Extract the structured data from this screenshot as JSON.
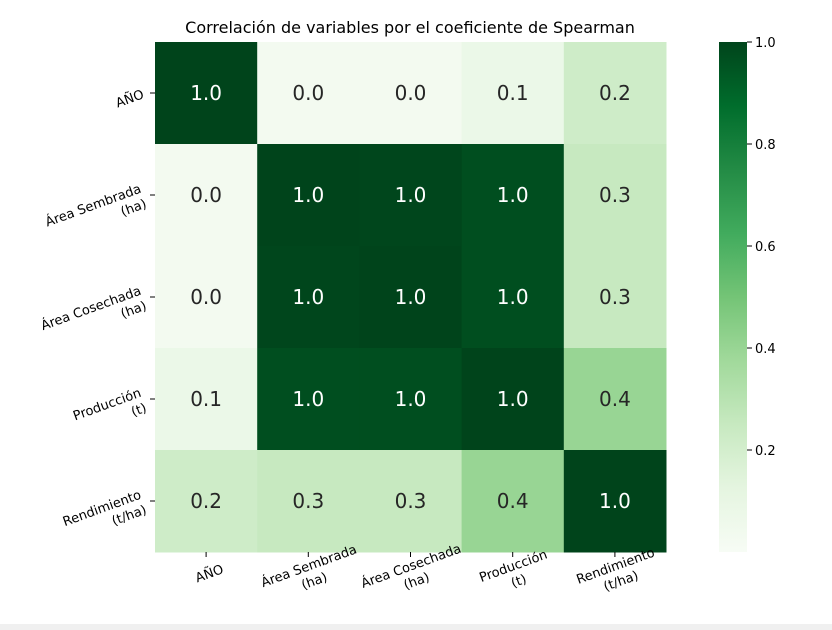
{
  "chart_data": {
    "type": "heatmap",
    "title": "Correlación de variables por el coeficiente de Spearman",
    "x_labels": [
      [
        "AÑO"
      ],
      [
        "Área Sembrada",
        "(ha)"
      ],
      [
        "Área Cosechada",
        "(ha)"
      ],
      [
        "Producción",
        "(t)"
      ],
      [
        "Rendimiento",
        "(t/ha)"
      ]
    ],
    "y_labels": [
      [
        "AÑO"
      ],
      [
        "Área Sembrada",
        "(ha)"
      ],
      [
        "Área Cosechada",
        "(ha)"
      ],
      [
        "Producción",
        "(t)"
      ],
      [
        "Rendimiento",
        "(t/ha)"
      ]
    ],
    "values": [
      [
        1.0,
        0.03,
        0.03,
        0.08,
        0.22
      ],
      [
        0.03,
        1.0,
        0.995,
        0.97,
        0.25
      ],
      [
        0.03,
        0.995,
        1.0,
        0.97,
        0.25
      ],
      [
        0.08,
        0.97,
        0.97,
        1.0,
        0.4
      ],
      [
        0.22,
        0.25,
        0.25,
        0.4,
        1.0
      ]
    ],
    "labels": [
      [
        "1.0",
        "0.0",
        "0.0",
        "0.1",
        "0.2"
      ],
      [
        "0.0",
        "1.0",
        "1.0",
        "1.0",
        "0.3"
      ],
      [
        "0.0",
        "1.0",
        "1.0",
        "1.0",
        "0.3"
      ],
      [
        "0.1",
        "1.0",
        "1.0",
        "1.0",
        "0.4"
      ],
      [
        "0.2",
        "0.3",
        "0.3",
        "0.4",
        "1.0"
      ]
    ],
    "colorbar": {
      "min": 0.0,
      "max": 1.0,
      "ticks": [
        0.2,
        0.4,
        0.6,
        0.8,
        1.0
      ],
      "tick_labels": [
        "0.2",
        "0.4",
        "0.6",
        "0.8",
        "1.0"
      ],
      "colormap": "Greens",
      "colors": [
        "#f7fcf5",
        "#e5f5e0",
        "#c7e9c0",
        "#a1d99b",
        "#74c476",
        "#41ab5d",
        "#238b45",
        "#006d2c",
        "#00441b"
      ]
    }
  }
}
